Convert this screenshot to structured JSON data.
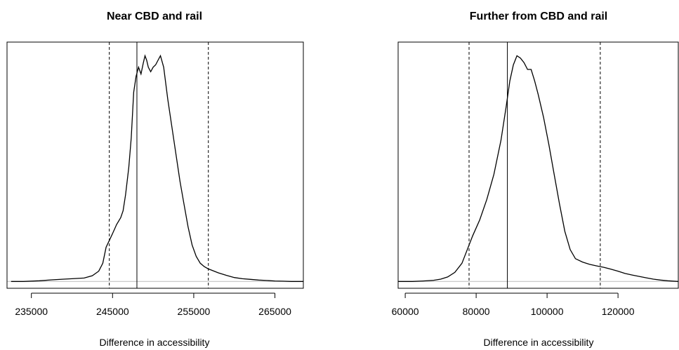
{
  "chart_data": [
    {
      "type": "line",
      "title": "Near CBD and rail",
      "xlabel": "Difference in accessibility",
      "ylabel": "",
      "xlim": [
        232000,
        268500
      ],
      "ylim": [
        -0.03,
        1.05
      ],
      "xticks": [
        235000,
        245000,
        255000,
        265000
      ],
      "tick_labels": [
        "235000",
        "245000",
        "255000",
        "265000"
      ],
      "grid": false,
      "legend": "none",
      "reference_lines": [
        {
          "x": 244600,
          "style": "dashed"
        },
        {
          "x": 248000,
          "style": "solid"
        },
        {
          "x": 256800,
          "style": "dashed"
        }
      ],
      "baseline_color": "#bbbbbb",
      "series": [
        {
          "x": [
            232500,
            234000,
            236000,
            237500,
            239000,
            240000,
            241500,
            242500,
            243300,
            243800,
            244200,
            244600,
            245000,
            245500,
            246000,
            246300,
            246600,
            247000,
            247300,
            247600,
            247900,
            248200,
            248500,
            248800,
            249000,
            249200,
            249400,
            249700,
            250000,
            250300,
            250600,
            250900,
            251300,
            251800,
            252300,
            252800,
            253300,
            253800,
            254300,
            254800,
            255300,
            255800,
            256300,
            256800,
            257300,
            258000,
            259000,
            260000,
            261000,
            262000,
            263000,
            264000,
            265000,
            266000,
            267000,
            268500
          ],
          "y": [
            0.0,
            0.0,
            0.003,
            0.007,
            0.01,
            0.012,
            0.015,
            0.025,
            0.045,
            0.08,
            0.15,
            0.18,
            0.21,
            0.25,
            0.28,
            0.31,
            0.38,
            0.5,
            0.63,
            0.83,
            0.9,
            0.94,
            0.91,
            0.96,
            0.99,
            0.97,
            0.94,
            0.92,
            0.94,
            0.95,
            0.97,
            0.99,
            0.94,
            0.8,
            0.68,
            0.56,
            0.44,
            0.34,
            0.24,
            0.16,
            0.11,
            0.08,
            0.065,
            0.055,
            0.048,
            0.038,
            0.027,
            0.017,
            0.012,
            0.009,
            0.006,
            0.004,
            0.002,
            0.001,
            0.0,
            0.0
          ]
        }
      ]
    },
    {
      "type": "line",
      "title": "Further from CBD and rail",
      "xlabel": "Difference in accessibility",
      "ylabel": "",
      "xlim": [
        58000,
        137000
      ],
      "ylim": [
        -0.03,
        1.05
      ],
      "xticks": [
        60000,
        80000,
        100000,
        120000
      ],
      "tick_labels": [
        "60000",
        "80000",
        "100000",
        "120000"
      ],
      "grid": false,
      "legend": "none",
      "reference_lines": [
        {
          "x": 78000,
          "style": "dashed"
        },
        {
          "x": 88800,
          "style": "solid"
        },
        {
          "x": 115000,
          "style": "dashed"
        }
      ],
      "baseline_color": "#bbbbbb",
      "series": [
        {
          "x": [
            58000,
            62000,
            65000,
            68000,
            70000,
            72000,
            74000,
            76000,
            77500,
            79000,
            81000,
            83000,
            85000,
            87000,
            88500,
            89500,
            90500,
            91500,
            92500,
            93500,
            94500,
            95500,
            96500,
            97500,
            99000,
            100500,
            102000,
            103500,
            105000,
            106500,
            108000,
            110000,
            112000,
            114000,
            116000,
            118000,
            120000,
            122000,
            124000,
            126000,
            128000,
            130000,
            132000,
            134000,
            137000
          ],
          "y": [
            0.0,
            0.0,
            0.002,
            0.005,
            0.01,
            0.02,
            0.04,
            0.08,
            0.14,
            0.2,
            0.27,
            0.36,
            0.47,
            0.62,
            0.77,
            0.88,
            0.95,
            0.99,
            0.98,
            0.96,
            0.93,
            0.93,
            0.88,
            0.82,
            0.72,
            0.6,
            0.47,
            0.34,
            0.22,
            0.14,
            0.1,
            0.085,
            0.075,
            0.068,
            0.062,
            0.054,
            0.045,
            0.035,
            0.028,
            0.022,
            0.016,
            0.01,
            0.006,
            0.003,
            0.0
          ]
        }
      ]
    }
  ]
}
